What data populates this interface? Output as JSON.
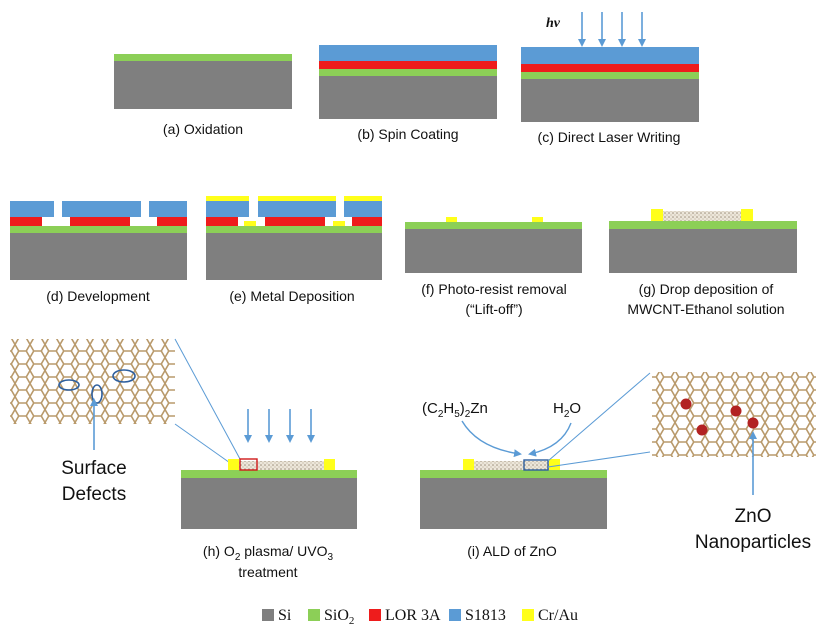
{
  "colors": {
    "si": "#7f7f7f",
    "sio2": "#8ccf57",
    "lor": "#ee1c1c",
    "s1813": "#5b9bd5",
    "crau": "#ffff1a",
    "tube": "#b99a6b",
    "arrow": "#5b9bd5",
    "np": "#b22222",
    "mwcnt": "#ddd6c8"
  },
  "steps": {
    "a": {
      "label": "(a) Oxidation"
    },
    "b": {
      "label": "(b) Spin Coating"
    },
    "c": {
      "label": "(c) Direct Laser Writing",
      "hv": "hν"
    },
    "d": {
      "label": "(d) Development"
    },
    "e": {
      "label": "(e) Metal Deposition"
    },
    "f": {
      "label_line1": "(f) Photo-resist removal",
      "label_line2": "(“Lift-off”)"
    },
    "g": {
      "label_line1": "(g) Drop deposition of",
      "label_line2": "MWCNT-Ethanol solution"
    },
    "h": {
      "label_prefix": "(h) O",
      "label_sub1": "2",
      "label_mid": " plasma/ UVO",
      "label_sub2": "3",
      "label_line2": "treatment"
    },
    "i": {
      "label": "(i) ALD of ZnO"
    }
  },
  "annotations": {
    "surface_defects_line1": "Surface",
    "surface_defects_line2": "Defects",
    "zno_line1": "ZnO",
    "zno_line2": "Nanoparticles",
    "precursor1_a": "(C",
    "precursor1_s1": "2",
    "precursor1_b": "H",
    "precursor1_s2": "5",
    "precursor1_c": ")",
    "precursor1_s3": "2",
    "precursor1_d": "Zn",
    "precursor2_a": "H",
    "precursor2_s": "2",
    "precursor2_b": "O"
  },
  "legend": [
    {
      "name": "Si",
      "color": "#7f7f7f"
    },
    {
      "name": "SiO",
      "sub": "2",
      "color": "#8ccf57"
    },
    {
      "name": "LOR 3A",
      "color": "#ee1c1c"
    },
    {
      "name": "S1813",
      "color": "#5b9bd5"
    },
    {
      "name": "Cr/Au",
      "color": "#ffff1a"
    }
  ]
}
